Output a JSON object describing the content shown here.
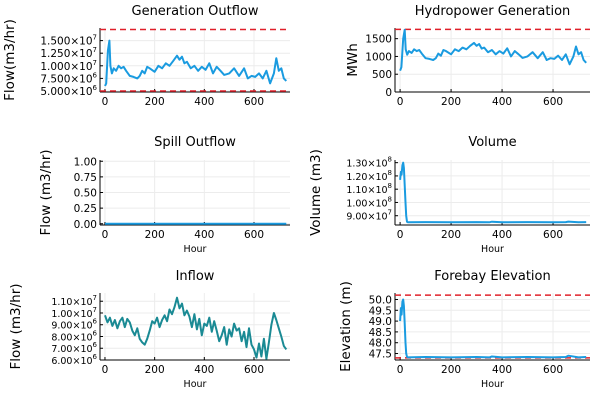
{
  "figure": {
    "colors": {
      "series": "#1a9be0",
      "inflow": "#1a8a94",
      "limit": "#e0202a",
      "grid": "#ececec",
      "axis": "#000000"
    }
  },
  "chart_data": [
    {
      "id": "gen_outflow",
      "type": "line",
      "title": "Generation Outflow",
      "xlabel": "",
      "ylabel": "Flow(m3/hr)",
      "xlim": [
        -20,
        745
      ],
      "ylim": [
        4800000,
        17500000
      ],
      "xticks": [
        0,
        200,
        400,
        600
      ],
      "yticks": [
        {
          "v": 5000000,
          "m": "5.000",
          "e": "6"
        },
        {
          "v": 7500000,
          "m": "7.500",
          "e": "6"
        },
        {
          "v": 10000000,
          "m": "1.000",
          "e": "7"
        },
        {
          "v": 12500000,
          "m": "1.250",
          "e": "7"
        },
        {
          "v": 15000000,
          "m": "1.500",
          "e": "7"
        }
      ],
      "hlines": [
        5000000,
        17200000
      ],
      "grid": true,
      "series": [
        {
          "color": "series",
          "x": [
            0,
            5,
            12,
            18,
            22,
            28,
            35,
            45,
            55,
            65,
            75,
            85,
            100,
            115,
            130,
            140,
            150,
            160,
            170,
            180,
            200,
            215,
            230,
            245,
            260,
            275,
            290,
            300,
            310,
            320,
            330,
            345,
            360,
            375,
            390,
            405,
            420,
            435,
            450,
            465,
            480,
            500,
            520,
            540,
            560,
            575,
            590,
            605,
            620,
            635,
            650,
            665,
            680,
            690,
            700,
            710,
            720,
            730
          ],
          "y": [
            6000000,
            6500000,
            13000000,
            15000000,
            10000000,
            8500000,
            9500000,
            9000000,
            10000000,
            9500000,
            9800000,
            9000000,
            8000000,
            7800000,
            7500000,
            8000000,
            9000000,
            8500000,
            9800000,
            9500000,
            8800000,
            10000000,
            9500000,
            10500000,
            10000000,
            11000000,
            12000000,
            11200000,
            11800000,
            10500000,
            10800000,
            9500000,
            10000000,
            9000000,
            9800000,
            9200000,
            10500000,
            8500000,
            9800000,
            9000000,
            8200000,
            8500000,
            9500000,
            8000000,
            9500000,
            7500000,
            8000000,
            7800000,
            8500000,
            7500000,
            9000000,
            6500000,
            8500000,
            11500000,
            9000000,
            9500000,
            7500000,
            7000000
          ]
        }
      ]
    },
    {
      "id": "hydropower",
      "type": "line",
      "title": "Hydropower Generation",
      "xlabel": "",
      "ylabel": "MWh",
      "xlim": [
        -20,
        745
      ],
      "ylim": [
        0,
        1800
      ],
      "xticks": [
        0,
        200,
        400,
        600
      ],
      "yticks": [
        {
          "v": 0,
          "m": "0"
        },
        {
          "v": 500,
          "m": "500"
        },
        {
          "v": 1000,
          "m": "1000"
        },
        {
          "v": 1500,
          "m": "1500"
        }
      ],
      "hlines": [
        1760
      ],
      "grid": true,
      "series": [
        {
          "color": "series",
          "x": [
            0,
            5,
            12,
            18,
            22,
            28,
            35,
            45,
            55,
            65,
            75,
            85,
            100,
            115,
            130,
            140,
            150,
            160,
            170,
            180,
            200,
            215,
            230,
            245,
            260,
            275,
            290,
            300,
            310,
            320,
            330,
            345,
            360,
            375,
            390,
            405,
            420,
            435,
            450,
            465,
            480,
            500,
            520,
            540,
            560,
            575,
            590,
            605,
            620,
            635,
            650,
            665,
            680,
            690,
            700,
            710,
            720,
            730
          ],
          "y": [
            600,
            700,
            1500,
            1750,
            1200,
            1050,
            1150,
            1100,
            1200,
            1150,
            1180,
            1080,
            950,
            930,
            900,
            950,
            1080,
            1020,
            1180,
            1150,
            1060,
            1200,
            1150,
            1250,
            1200,
            1300,
            1380,
            1300,
            1350,
            1220,
            1250,
            1120,
            1180,
            1060,
            1150,
            1080,
            1230,
            1000,
            1150,
            1060,
            960,
            1000,
            1120,
            950,
            1120,
            900,
            950,
            930,
            1020,
            900,
            1060,
            780,
            1000,
            1280,
            1060,
            1120,
            900,
            820
          ]
        }
      ]
    },
    {
      "id": "spill",
      "type": "line",
      "title": "Spill Outflow",
      "xlabel": "Hour",
      "ylabel": "Flow (m3/hr)",
      "xlim": [
        -20,
        745
      ],
      "ylim": [
        -0.02,
        1.02
      ],
      "xticks": [
        0,
        200,
        400,
        600
      ],
      "yticks": [
        {
          "v": 0,
          "m": "0.00"
        },
        {
          "v": 0.25,
          "m": "0.25"
        },
        {
          "v": 0.5,
          "m": "0.50"
        },
        {
          "v": 0.75,
          "m": "0.75"
        },
        {
          "v": 1.0,
          "m": "1.00"
        }
      ],
      "hlines": [],
      "grid": true,
      "series": [
        {
          "color": "series",
          "x": [
            0,
            730
          ],
          "y": [
            0,
            0
          ]
        }
      ]
    },
    {
      "id": "volume",
      "type": "line",
      "title": "Volume",
      "xlabel": "Hour",
      "ylabel": "Volume (m3)",
      "xlim": [
        -20,
        745
      ],
      "ylim": [
        83000000,
        132000000
      ],
      "xticks": [
        0,
        200,
        400,
        600
      ],
      "yticks": [
        {
          "v": 90000000,
          "m": "9.00",
          "e": "7"
        },
        {
          "v": 100000000,
          "m": "1.00",
          "e": "8"
        },
        {
          "v": 110000000,
          "m": "1.10",
          "e": "8"
        },
        {
          "v": 120000000,
          "m": "1.20",
          "e": "8"
        },
        {
          "v": 130000000,
          "m": "1.30",
          "e": "8"
        }
      ],
      "hlines": [],
      "grid": true,
      "series": [
        {
          "color": "series",
          "x": [
            0,
            3,
            6,
            9,
            12,
            15,
            18,
            21,
            24,
            27,
            30,
            100,
            200,
            300,
            350,
            360,
            400,
            500,
            600,
            650,
            660,
            700,
            730
          ],
          "y": [
            117000000,
            123000000,
            121000000,
            128000000,
            130000000,
            126000000,
            113000000,
            100000000,
            90000000,
            85500000,
            85000000,
            85200000,
            85000000,
            85200000,
            85000000,
            85500000,
            85000000,
            85200000,
            85000000,
            85200000,
            85600000,
            85000000,
            85200000
          ]
        }
      ]
    },
    {
      "id": "inflow",
      "type": "line",
      "title": "Inflow",
      "xlabel": "Hour",
      "ylabel": "Flow (m3/hr)",
      "xlim": [
        -20,
        745
      ],
      "ylim": [
        6000000,
        11700000
      ],
      "xticks": [
        0,
        200,
        400,
        600
      ],
      "yticks": [
        {
          "v": 6000000,
          "m": "6.00",
          "e": "6"
        },
        {
          "v": 7000000,
          "m": "7.00",
          "e": "6"
        },
        {
          "v": 8000000,
          "m": "8.00",
          "e": "6"
        },
        {
          "v": 9000000,
          "m": "9.00",
          "e": "6"
        },
        {
          "v": 10000000,
          "m": "1.00",
          "e": "7"
        },
        {
          "v": 11000000,
          "m": "1.10",
          "e": "7"
        }
      ],
      "hlines": [],
      "grid": true,
      "series": [
        {
          "color": "inflow",
          "x": [
            0,
            10,
            20,
            30,
            40,
            50,
            60,
            70,
            80,
            90,
            100,
            110,
            120,
            130,
            140,
            150,
            160,
            170,
            180,
            190,
            200,
            210,
            220,
            230,
            240,
            250,
            260,
            270,
            280,
            290,
            300,
            310,
            320,
            330,
            340,
            350,
            360,
            370,
            380,
            390,
            400,
            410,
            420,
            430,
            440,
            450,
            460,
            470,
            480,
            490,
            500,
            510,
            520,
            530,
            540,
            550,
            560,
            570,
            580,
            590,
            600,
            610,
            620,
            630,
            640,
            650,
            660,
            670,
            680,
            690,
            700,
            710,
            720,
            730
          ],
          "y": [
            9800000,
            9200000,
            9600000,
            8900000,
            9400000,
            8700000,
            9300000,
            9600000,
            8800000,
            9500000,
            9200000,
            8500000,
            8100000,
            8700000,
            7800000,
            7500000,
            7300000,
            7800000,
            8500000,
            9300000,
            9100000,
            9600000,
            8800000,
            9400000,
            9800000,
            9300000,
            10300000,
            9900000,
            10500000,
            11300000,
            10400000,
            10800000,
            9800000,
            10200000,
            9700000,
            8800000,
            9900000,
            8600000,
            9500000,
            8100000,
            9100000,
            8900000,
            9600000,
            8400000,
            9300000,
            8500000,
            7600000,
            8100000,
            8800000,
            7300000,
            8600000,
            8000000,
            9100000,
            8500000,
            8700000,
            7600000,
            8400000,
            7100000,
            8700000,
            7300000,
            6900000,
            6200000,
            7400000,
            6300000,
            7800000,
            6100000,
            7500000,
            9000000,
            10000000,
            9400000,
            8700000,
            8000000,
            7200000,
            6900000
          ]
        }
      ]
    },
    {
      "id": "forebay",
      "type": "line",
      "title": "Forebay Elevation",
      "xlabel": "Hour",
      "ylabel": "Elevation (m)",
      "xlim": [
        -20,
        745
      ],
      "ylim": [
        47.2,
        50.3
      ],
      "xticks": [
        0,
        200,
        400,
        600
      ],
      "yticks": [
        {
          "v": 47.5,
          "m": "47.5"
        },
        {
          "v": 48.0,
          "m": "48.0"
        },
        {
          "v": 48.5,
          "m": "48.5"
        },
        {
          "v": 49.0,
          "m": "49.0"
        },
        {
          "v": 49.5,
          "m": "49.5"
        },
        {
          "v": 50.0,
          "m": "50.0"
        }
      ],
      "hlines": [
        50.2,
        47.3
      ],
      "grid": true,
      "series": [
        {
          "color": "series",
          "x": [
            0,
            3,
            6,
            9,
            12,
            15,
            18,
            21,
            24,
            27,
            30,
            100,
            200,
            300,
            350,
            360,
            400,
            500,
            600,
            650,
            660,
            700,
            730
          ],
          "y": [
            49.0,
            49.6,
            49.3,
            49.9,
            50.0,
            49.7,
            48.9,
            48.0,
            47.5,
            47.35,
            47.32,
            47.34,
            47.32,
            47.34,
            47.32,
            47.36,
            47.32,
            47.34,
            47.32,
            47.34,
            47.4,
            47.32,
            47.34
          ]
        }
      ]
    }
  ]
}
